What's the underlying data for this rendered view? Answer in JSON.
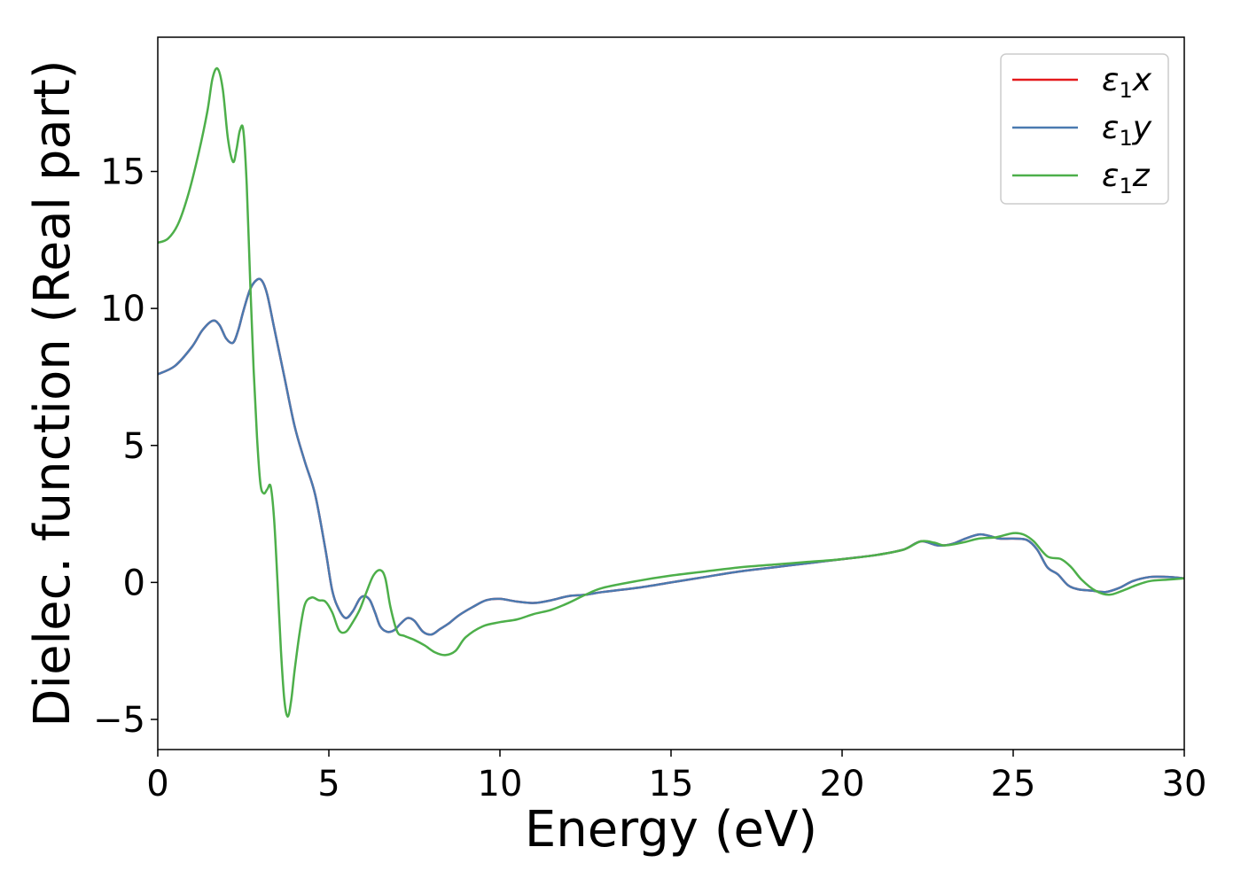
{
  "chart_data": {
    "type": "line",
    "title": "",
    "xlabel": "Energy (eV)",
    "ylabel": "Dielec. function (Real part)",
    "xlim": [
      0,
      30
    ],
    "ylim": [
      -6.1,
      19.9
    ],
    "xticks": [
      0,
      5,
      10,
      15,
      20,
      25,
      30
    ],
    "yticks": [
      -5,
      0,
      5,
      10,
      15
    ],
    "ytick_labels": [
      "−5",
      "0",
      "5",
      "10",
      "15"
    ],
    "grid": false,
    "legend_position": "top-right",
    "series": [
      {
        "name": "ε₁x",
        "legend_main": "ε",
        "legend_sub": "1",
        "legend_tail": "x",
        "color": "#e41a1c",
        "x": [
          0,
          0.5,
          1.0,
          1.3,
          1.6,
          1.8,
          2.0,
          2.2,
          2.35,
          2.5,
          2.7,
          2.9,
          3.05,
          3.2,
          3.4,
          3.7,
          4.0,
          4.3,
          4.6,
          4.9,
          5.1,
          5.3,
          5.5,
          5.7,
          5.9,
          6.05,
          6.2,
          6.35,
          6.5,
          6.7,
          6.9,
          7.1,
          7.3,
          7.5,
          7.75,
          8.0,
          8.25,
          8.5,
          8.8,
          9.2,
          9.6,
          10.0,
          10.5,
          11.0,
          11.5,
          12.0,
          12.5,
          13.0,
          14.0,
          15.0,
          16.0,
          17.0,
          18.0,
          19.0,
          20.0,
          21.0,
          21.8,
          22.3,
          22.8,
          23.2,
          23.6,
          24.0,
          24.3,
          24.6,
          25.0,
          25.4,
          25.7,
          26.0,
          26.3,
          26.6,
          26.9,
          27.3,
          27.7,
          28.1,
          28.5,
          29.0,
          29.5,
          30.0
        ],
        "y": [
          7.6,
          7.9,
          8.6,
          9.2,
          9.55,
          9.4,
          8.9,
          8.75,
          9.2,
          9.9,
          10.7,
          11.05,
          11.0,
          10.5,
          9.3,
          7.5,
          5.7,
          4.4,
          3.2,
          1.2,
          -0.3,
          -1.0,
          -1.3,
          -1.05,
          -0.6,
          -0.5,
          -0.65,
          -1.1,
          -1.6,
          -1.8,
          -1.75,
          -1.5,
          -1.3,
          -1.4,
          -1.8,
          -1.9,
          -1.7,
          -1.5,
          -1.2,
          -0.9,
          -0.65,
          -0.6,
          -0.7,
          -0.75,
          -0.65,
          -0.5,
          -0.45,
          -0.35,
          -0.2,
          0.0,
          0.2,
          0.4,
          0.55,
          0.7,
          0.85,
          1.0,
          1.2,
          1.5,
          1.35,
          1.4,
          1.6,
          1.75,
          1.7,
          1.6,
          1.6,
          1.55,
          1.2,
          0.55,
          0.3,
          -0.1,
          -0.25,
          -0.3,
          -0.35,
          -0.2,
          0.05,
          0.2,
          0.2,
          0.15
        ]
      },
      {
        "name": "ε₁y",
        "legend_main": "ε",
        "legend_sub": "1",
        "legend_tail": "y",
        "color": "#4a7ab0",
        "x": [
          0,
          0.5,
          1.0,
          1.3,
          1.6,
          1.8,
          2.0,
          2.2,
          2.35,
          2.5,
          2.7,
          2.9,
          3.05,
          3.2,
          3.4,
          3.7,
          4.0,
          4.3,
          4.6,
          4.9,
          5.1,
          5.3,
          5.5,
          5.7,
          5.9,
          6.05,
          6.2,
          6.35,
          6.5,
          6.7,
          6.9,
          7.1,
          7.3,
          7.5,
          7.75,
          8.0,
          8.25,
          8.5,
          8.8,
          9.2,
          9.6,
          10.0,
          10.5,
          11.0,
          11.5,
          12.0,
          12.5,
          13.0,
          14.0,
          15.0,
          16.0,
          17.0,
          18.0,
          19.0,
          20.0,
          21.0,
          21.8,
          22.3,
          22.8,
          23.2,
          23.6,
          24.0,
          24.3,
          24.6,
          25.0,
          25.4,
          25.7,
          26.0,
          26.3,
          26.6,
          26.9,
          27.3,
          27.7,
          28.1,
          28.5,
          29.0,
          29.5,
          30.0
        ],
        "y": [
          7.6,
          7.9,
          8.6,
          9.2,
          9.55,
          9.4,
          8.9,
          8.75,
          9.2,
          9.9,
          10.7,
          11.05,
          11.0,
          10.5,
          9.3,
          7.5,
          5.7,
          4.4,
          3.2,
          1.2,
          -0.3,
          -1.0,
          -1.3,
          -1.05,
          -0.6,
          -0.5,
          -0.65,
          -1.1,
          -1.6,
          -1.8,
          -1.75,
          -1.5,
          -1.3,
          -1.4,
          -1.8,
          -1.9,
          -1.7,
          -1.5,
          -1.2,
          -0.9,
          -0.65,
          -0.6,
          -0.7,
          -0.75,
          -0.65,
          -0.5,
          -0.45,
          -0.35,
          -0.2,
          0.0,
          0.2,
          0.4,
          0.55,
          0.7,
          0.85,
          1.0,
          1.2,
          1.5,
          1.35,
          1.4,
          1.6,
          1.75,
          1.7,
          1.6,
          1.6,
          1.55,
          1.2,
          0.55,
          0.3,
          -0.1,
          -0.25,
          -0.3,
          -0.35,
          -0.2,
          0.05,
          0.2,
          0.2,
          0.15
        ]
      },
      {
        "name": "ε₁z",
        "legend_main": "ε",
        "legend_sub": "1",
        "legend_tail": "z",
        "color": "#4daf4a",
        "x": [
          0,
          0.3,
          0.6,
          0.9,
          1.2,
          1.45,
          1.6,
          1.75,
          1.9,
          2.05,
          2.2,
          2.3,
          2.4,
          2.5,
          2.6,
          2.7,
          2.8,
          2.9,
          3.0,
          3.1,
          3.2,
          3.3,
          3.4,
          3.5,
          3.6,
          3.7,
          3.8,
          3.9,
          4.0,
          4.15,
          4.3,
          4.5,
          4.7,
          4.9,
          5.1,
          5.3,
          5.5,
          5.7,
          5.9,
          6.1,
          6.3,
          6.5,
          6.65,
          6.8,
          7.0,
          7.2,
          7.5,
          7.8,
          8.1,
          8.4,
          8.7,
          9.0,
          9.5,
          10.0,
          10.5,
          11.0,
          11.5,
          12.0,
          12.5,
          13.0,
          14.0,
          15.0,
          16.0,
          17.0,
          18.0,
          19.0,
          20.0,
          21.0,
          21.8,
          22.3,
          22.7,
          23.0,
          23.5,
          24.0,
          24.5,
          25.0,
          25.3,
          25.6,
          26.0,
          26.4,
          26.7,
          27.0,
          27.4,
          27.8,
          28.2,
          28.6,
          29.0,
          29.5,
          30.0
        ],
        "y": [
          12.4,
          12.55,
          13.1,
          14.2,
          15.7,
          17.2,
          18.4,
          18.75,
          18.0,
          16.2,
          15.35,
          15.8,
          16.5,
          16.5,
          14.5,
          11.0,
          7.8,
          5.3,
          3.6,
          3.25,
          3.4,
          3.5,
          2.3,
          0.0,
          -2.5,
          -4.3,
          -4.9,
          -4.3,
          -3.2,
          -1.8,
          -0.8,
          -0.55,
          -0.65,
          -0.7,
          -1.1,
          -1.75,
          -1.8,
          -1.45,
          -1.0,
          -0.35,
          0.25,
          0.45,
          0.15,
          -0.9,
          -1.8,
          -1.95,
          -2.1,
          -2.3,
          -2.55,
          -2.65,
          -2.5,
          -2.0,
          -1.6,
          -1.45,
          -1.35,
          -1.15,
          -1.0,
          -0.75,
          -0.45,
          -0.2,
          0.05,
          0.25,
          0.4,
          0.55,
          0.65,
          0.75,
          0.85,
          1.0,
          1.2,
          1.5,
          1.45,
          1.35,
          1.45,
          1.6,
          1.65,
          1.8,
          1.75,
          1.5,
          0.95,
          0.85,
          0.55,
          0.1,
          -0.3,
          -0.45,
          -0.3,
          -0.1,
          0.05,
          0.1,
          0.15
        ]
      }
    ]
  }
}
